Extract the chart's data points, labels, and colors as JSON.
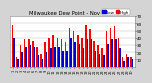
{
  "title": "Milwaukee Dew Point - Nov 2003",
  "title_fontsize": 3.8,
  "background_color": "#d4d4d4",
  "plot_bg_color": "#ffffff",
  "bar_width": 0.38,
  "days": [
    1,
    2,
    3,
    4,
    5,
    6,
    7,
    8,
    9,
    10,
    11,
    12,
    13,
    14,
    15,
    16,
    17,
    18,
    19,
    20,
    21,
    22,
    23,
    24,
    25,
    26,
    27,
    28,
    29,
    30
  ],
  "high_values": [
    58,
    14,
    30,
    38,
    38,
    36,
    28,
    18,
    34,
    40,
    44,
    40,
    38,
    34,
    54,
    50,
    44,
    40,
    58,
    52,
    36,
    30,
    26,
    50,
    54,
    56,
    40,
    14,
    18,
    14
  ],
  "low_values": [
    40,
    10,
    20,
    28,
    30,
    28,
    16,
    10,
    20,
    26,
    28,
    28,
    22,
    22,
    40,
    34,
    32,
    26,
    38,
    38,
    22,
    18,
    16,
    32,
    38,
    38,
    26,
    8,
    14,
    10
  ],
  "high_color": "#ff0000",
  "low_color": "#0000cc",
  "ylim_min": 0,
  "ylim_max": 70,
  "yticks": [
    10,
    20,
    30,
    40,
    50,
    60,
    70
  ],
  "ytick_labels": [
    "10",
    "20",
    "30",
    "40",
    "50",
    "60",
    "70"
  ],
  "ytick_fontsize": 3.0,
  "xtick_fontsize": 2.5,
  "legend_fontsize": 3.0,
  "grid_color": "#bbbbbb",
  "spine_color": "#888888"
}
